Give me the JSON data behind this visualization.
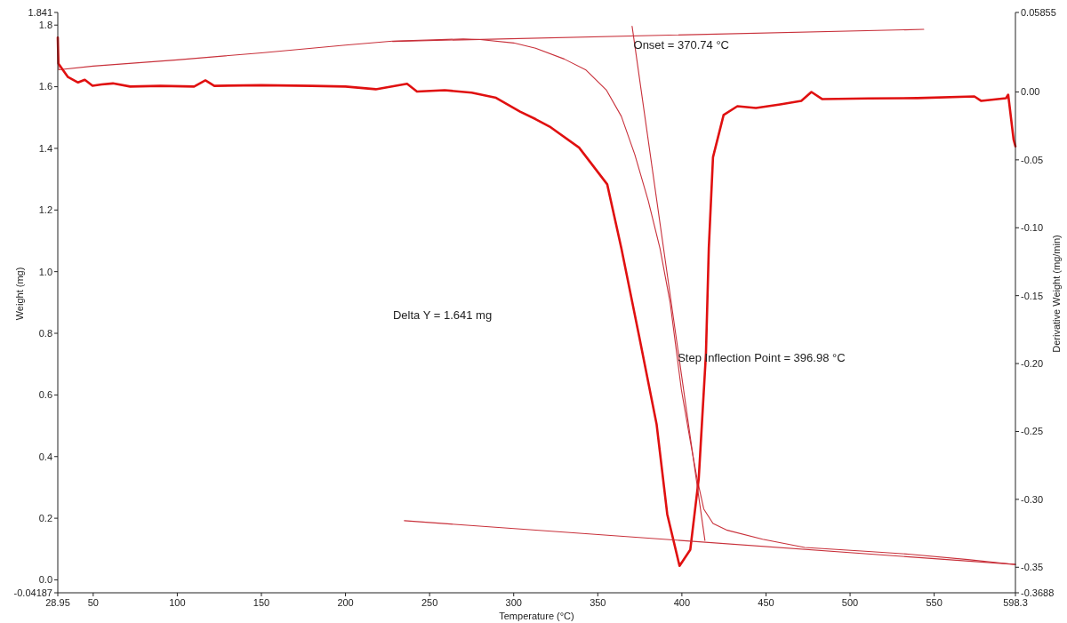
{
  "chart_data": {
    "type": "line",
    "xlabel": "Temperature (°C)",
    "ylabel": "Weight (mg)",
    "y2label": "Derivative Weight (mg/min)",
    "xlim": [
      28.95,
      598.3
    ],
    "xticks": [
      28.95,
      50,
      100,
      150,
      200,
      250,
      300,
      350,
      400,
      450,
      500,
      550,
      598.3
    ],
    "ylim": [
      -0.04187,
      1.841
    ],
    "yticks": [
      -0.04187,
      {
        "value": 0,
        "label": "0.0"
      },
      0.2,
      0.4,
      0.6,
      0.8,
      {
        "value": 1,
        "label": "1.0"
      },
      1.2,
      1.4,
      1.6,
      1.8,
      1.841
    ],
    "y2lim": [
      -0.3688,
      0.05855
    ],
    "y2ticks": [
      -0.3688,
      -0.35,
      {
        "value": -0.3,
        "label": "-0.30"
      },
      -0.25,
      {
        "value": -0.2,
        "label": "-0.20"
      },
      -0.15,
      {
        "value": -0.1,
        "label": "-0.10"
      },
      -0.05,
      {
        "value": 0,
        "label": "0.00"
      },
      0.05855
    ],
    "grid": false,
    "marker": "none",
    "line_style": "solid",
    "series": [
      {
        "color": "#c8303a",
        "x": [
          28.95,
          29.5,
          50,
          100,
          150,
          200,
          228,
          270,
          280,
          300,
          313,
          330,
          343,
          355,
          364,
          372,
          380,
          387,
          393,
          399.7,
          405,
          409,
          413,
          418.5,
          427,
          448,
          473,
          511,
          536,
          570,
          594.8,
          598.3
        ],
        "values": [
          1.76,
          1.655,
          1.667,
          1.687,
          1.71,
          1.735,
          1.748,
          1.755,
          1.753,
          1.742,
          1.725,
          1.69,
          1.654,
          1.59,
          1.504,
          1.38,
          1.23,
          1.075,
          0.9,
          0.617,
          0.45,
          0.33,
          0.23,
          0.183,
          0.161,
          0.132,
          0.105,
          0.092,
          0.083,
          0.066,
          0.052,
          0.05
        ]
      },
      {
        "color": "#e01010",
        "axis": "y2",
        "x": [
          28.95,
          29.3,
          35,
          41,
          45,
          49.6,
          55,
          61.7,
          72,
          90,
          110,
          116.7,
          122,
          150,
          180,
          200,
          218,
          236.6,
          242.5,
          259,
          275,
          289.5,
          303.8,
          313,
          322,
          338.9,
          355.6,
          364,
          374.6,
          385,
          391.3,
          398.6,
          405,
          410,
          414.3,
          416,
          418.5,
          424.8,
          433,
          444,
          458.4,
          471,
          477,
          483.5,
          511,
          540,
          573.9,
          578,
          592.7,
          594,
          597.2,
          598.3
        ],
        "values": [
          0.04,
          0.021,
          0.011,
          0.007,
          0.009,
          0.0046,
          0.0055,
          0.0063,
          0.004,
          0.0045,
          0.004,
          0.0085,
          0.0045,
          0.005,
          0.0045,
          0.004,
          0.002,
          0.006,
          0.0003,
          0.0013,
          -0.0005,
          -0.0043,
          -0.0145,
          -0.02,
          -0.026,
          -0.041,
          -0.068,
          -0.115,
          -0.18,
          -0.245,
          -0.311,
          -0.349,
          -0.337,
          -0.285,
          -0.193,
          -0.115,
          -0.048,
          -0.017,
          -0.0105,
          -0.0118,
          -0.0092,
          -0.0066,
          0.0,
          -0.0053,
          -0.0048,
          -0.0045,
          -0.0033,
          -0.0066,
          -0.0046,
          -0.002,
          -0.035,
          -0.04
        ]
      },
      {
        "color": "#c8303a",
        "x": [
          228,
          543.8
        ],
        "values": [
          1.747,
          1.786
        ]
      },
      {
        "color": "#c8303a",
        "x": [
          370.4,
          413.7
        ],
        "values": [
          1.796,
          0.128
        ]
      },
      {
        "color": "#c8303a",
        "x": [
          235,
          598.3
        ],
        "values": [
          0.192,
          0.05
        ]
      }
    ],
    "annotations": [
      {
        "text": "Onset = 370.74 °C",
        "x": 370.74,
        "y": 1.765
      },
      "Delta Y = 1.641 mg",
      {
        "text": "Step  Inflection Point = 396.98 °C",
        "x": 396.98,
        "y": 0.75
      }
    ]
  }
}
